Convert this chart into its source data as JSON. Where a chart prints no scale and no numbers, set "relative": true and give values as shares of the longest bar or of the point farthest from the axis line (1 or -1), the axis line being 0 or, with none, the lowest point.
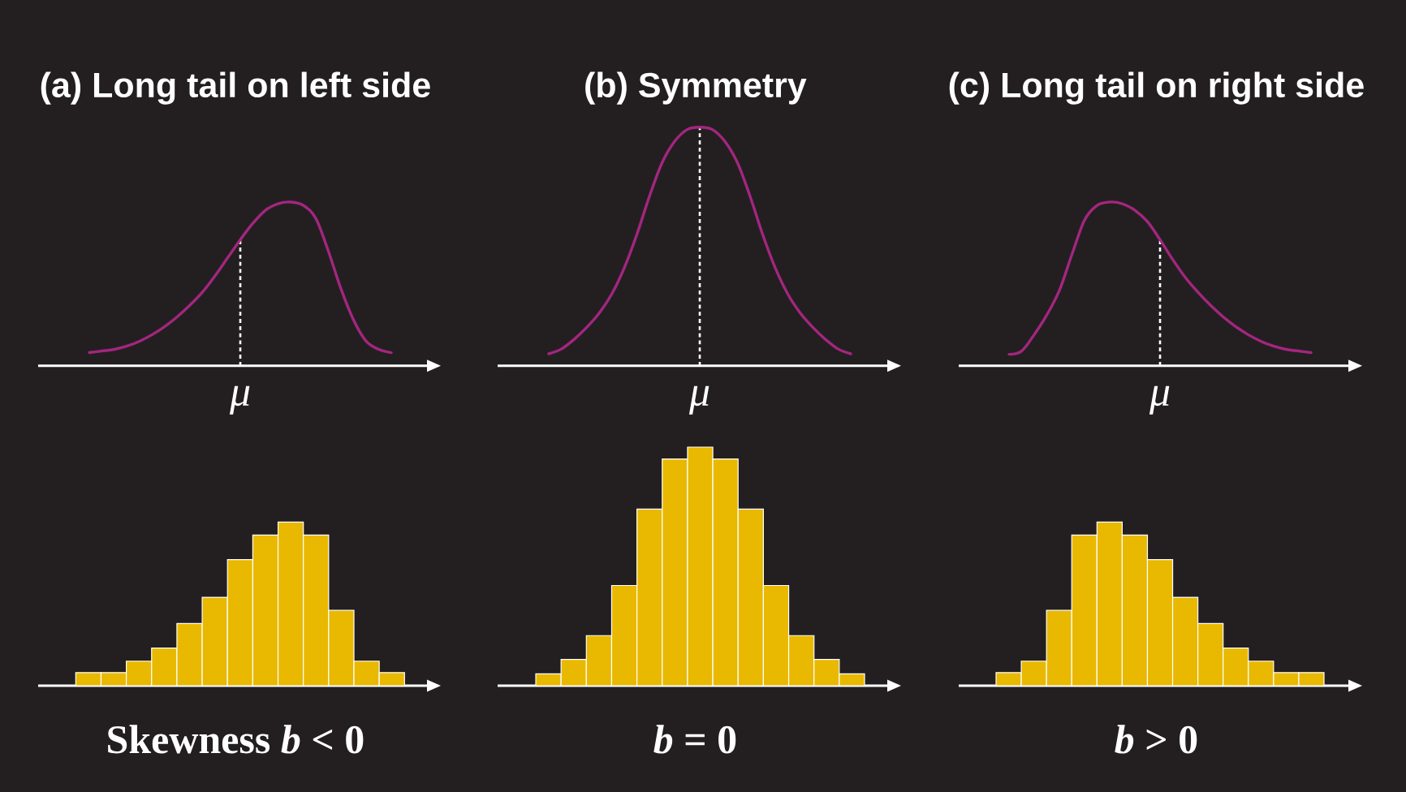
{
  "chart_data": [
    {
      "type": "line",
      "title": "(a) Long tail on left side",
      "relative": true,
      "categories": [
        null,
        null,
        null,
        null,
        null,
        null,
        null,
        null,
        null,
        null,
        null,
        null,
        null,
        null,
        null,
        null,
        null,
        null,
        null,
        null,
        null,
        null,
        null,
        null,
        null
      ],
      "values": [
        0.08,
        0.09,
        0.1,
        0.12,
        0.15,
        0.19,
        0.24,
        0.3,
        0.37,
        0.45,
        0.55,
        0.66,
        0.77,
        0.87,
        0.95,
        0.99,
        1,
        0.98,
        0.9,
        0.7,
        0.47,
        0.28,
        0.15,
        0.1,
        0.08
      ],
      "color": "#a3267f",
      "annotations": [
        "μ"
      ]
    },
    {
      "type": "line",
      "title": "(b) Symmetry",
      "relative": true,
      "categories": [
        null,
        null,
        null,
        null,
        null,
        null,
        null,
        null,
        null,
        null,
        null,
        null,
        null,
        null,
        null,
        null,
        null,
        null,
        null,
        null,
        null,
        null,
        null,
        null,
        null
      ],
      "values": [
        0.05,
        0.07,
        0.11,
        0.16,
        0.22,
        0.3,
        0.41,
        0.55,
        0.71,
        0.85,
        0.94,
        0.99,
        1,
        0.99,
        0.94,
        0.85,
        0.71,
        0.55,
        0.41,
        0.3,
        0.22,
        0.16,
        0.11,
        0.07,
        0.05
      ],
      "color": "#a3267f",
      "annotations": [
        "μ"
      ]
    },
    {
      "type": "line",
      "title": "(c) Long tail on right side",
      "relative": true,
      "categories": [
        null,
        null,
        null,
        null,
        null,
        null,
        null,
        null,
        null,
        null,
        null,
        null,
        null,
        null,
        null,
        null,
        null,
        null,
        null,
        null,
        null,
        null,
        null,
        null,
        null
      ],
      "values": [
        0.07,
        0.09,
        0.19,
        0.31,
        0.46,
        0.68,
        0.89,
        0.98,
        1,
        0.99,
        0.95,
        0.88,
        0.77,
        0.65,
        0.54,
        0.45,
        0.37,
        0.3,
        0.24,
        0.19,
        0.15,
        0.12,
        0.1,
        0.09,
        0.08
      ],
      "color": "#a3267f",
      "annotations": [
        "μ"
      ]
    },
    {
      "type": "bar",
      "xlabel": "Skewness *b* < 0",
      "relative": true,
      "categories": [
        null,
        null,
        null,
        null,
        null,
        null,
        null,
        null,
        null,
        null,
        null,
        null,
        null
      ],
      "values": [
        0.08,
        0.08,
        0.15,
        0.23,
        0.38,
        0.54,
        0.77,
        0.92,
        1,
        0.92,
        0.46,
        0.15,
        0.08
      ],
      "color": "#e8b900"
    },
    {
      "type": "bar",
      "xlabel": "*b* = 0",
      "relative": true,
      "categories": [
        null,
        null,
        null,
        null,
        null,
        null,
        null,
        null,
        null,
        null,
        null,
        null,
        null
      ],
      "values": [
        0.05,
        0.11,
        0.21,
        0.42,
        0.74,
        0.95,
        1,
        0.95,
        0.74,
        0.42,
        0.21,
        0.11,
        0.05
      ],
      "color": "#e8b900"
    },
    {
      "type": "bar",
      "xlabel": "*b* > 0",
      "relative": true,
      "categories": [
        null,
        null,
        null,
        null,
        null,
        null,
        null,
        null,
        null,
        null,
        null,
        null,
        null
      ],
      "values": [
        0.08,
        0.15,
        0.46,
        0.92,
        1,
        0.92,
        0.77,
        0.54,
        0.38,
        0.23,
        0.15,
        0.08,
        0.08
      ],
      "color": "#e8b900"
    }
  ]
}
